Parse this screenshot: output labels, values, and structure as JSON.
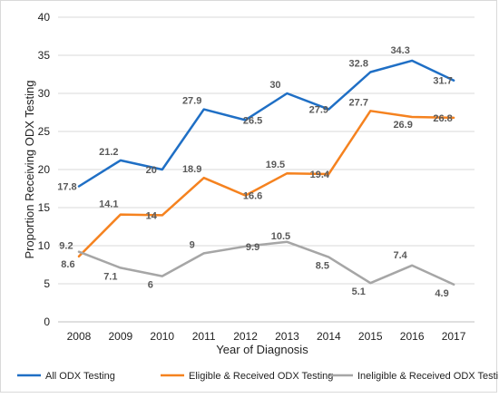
{
  "chart_data": {
    "type": "line",
    "title": "",
    "xlabel": "Year of Diagnosis",
    "ylabel": "Proportion Receiving ODX Testing",
    "x": [
      "2008",
      "2009",
      "2010",
      "2011",
      "2012",
      "2013",
      "2014",
      "2015",
      "2016",
      "2017"
    ],
    "ylim": [
      0,
      40
    ],
    "yticks": [
      0,
      5,
      10,
      15,
      20,
      25,
      30,
      35,
      40
    ],
    "grid": "horizontal",
    "legend_position": "bottom",
    "series": [
      {
        "name": "All ODX Testing",
        "color": "#1f6fc5",
        "values": [
          17.8,
          21.2,
          20,
          27.9,
          26.5,
          30,
          27.9,
          32.8,
          34.3,
          31.7
        ],
        "labels": [
          "17.8",
          "21.2",
          "20",
          "27.9",
          "26.5",
          "30",
          "27.9",
          "32.8",
          "34.3",
          "31.7"
        ]
      },
      {
        "name": "Eligible & Received ODX Testing",
        "color": "#f5821f",
        "values": [
          8.6,
          14.1,
          14,
          18.9,
          16.6,
          19.5,
          19.4,
          27.7,
          26.9,
          26.8
        ],
        "labels": [
          "8.6",
          "14.1",
          "14",
          "18.9",
          "16.6",
          "19.5",
          "19.4",
          "27.7",
          "26.9",
          "26.8"
        ]
      },
      {
        "name": "Ineligible & Received ODX Testing",
        "color": "#a6a6a6",
        "values": [
          9.2,
          7.1,
          6,
          9,
          9.9,
          10.5,
          8.5,
          5.1,
          7.4,
          4.9
        ],
        "labels": [
          "9.2",
          "7.1",
          "6",
          "9",
          "9.9",
          "10.5",
          "8.5",
          "5.1",
          "7.4",
          "4.9"
        ]
      }
    ]
  }
}
